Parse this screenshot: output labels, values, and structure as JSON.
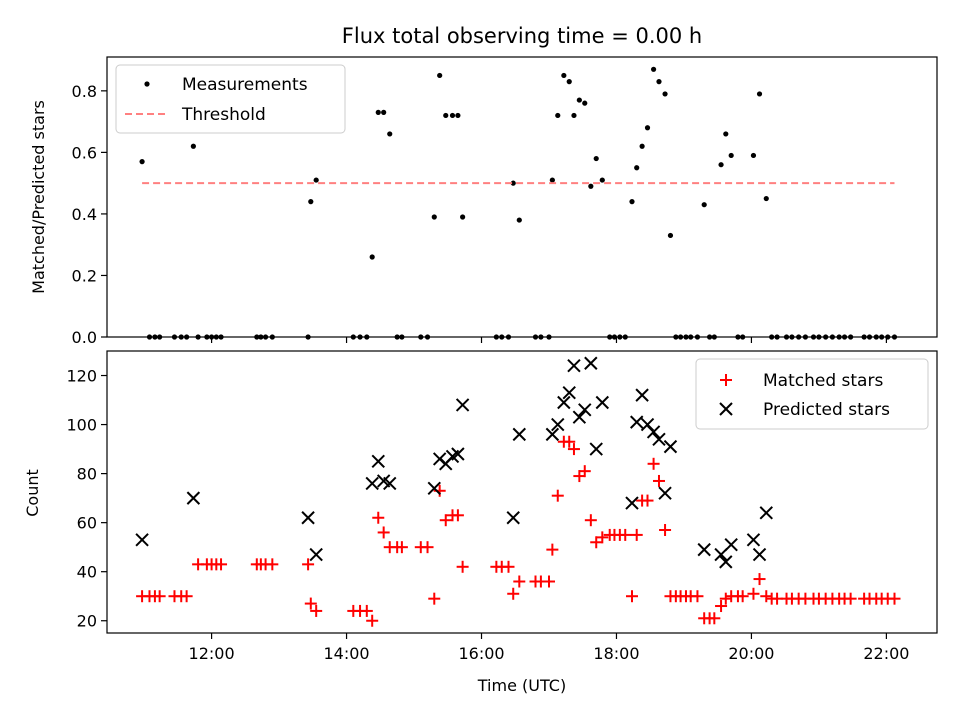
{
  "chart_data": [
    {
      "type": "scatter",
      "title": "Flux total observing time = 0.00 h",
      "xlabel": "",
      "ylabel": "Matched/Predicted stars",
      "xlim": [
        10.45,
        22.75
      ],
      "ylim": [
        0.0,
        0.91
      ],
      "yticks": [
        0.0,
        0.2,
        0.4,
        0.6,
        0.8
      ],
      "yticklabels": [
        "0.0",
        "0.2",
        "0.4",
        "0.6",
        "0.8"
      ],
      "legend_position": "upper-left",
      "series": [
        {
          "name": "Measurements",
          "marker": "dot",
          "color": "#000000",
          "points": [
            [
              10.97,
              0.57
            ],
            [
              11.08,
              0.0
            ],
            [
              11.16,
              0.0
            ],
            [
              11.23,
              0.0
            ],
            [
              11.45,
              0.0
            ],
            [
              11.55,
              0.0
            ],
            [
              11.63,
              0.0
            ],
            [
              11.73,
              0.62
            ],
            [
              11.8,
              0.0
            ],
            [
              11.93,
              0.0
            ],
            [
              12.0,
              0.0
            ],
            [
              12.07,
              0.0
            ],
            [
              12.14,
              0.0
            ],
            [
              12.67,
              0.0
            ],
            [
              12.73,
              0.0
            ],
            [
              12.8,
              0.0
            ],
            [
              12.9,
              0.0
            ],
            [
              13.43,
              0.0
            ],
            [
              13.47,
              0.44
            ],
            [
              13.55,
              0.51
            ],
            [
              14.1,
              0.0
            ],
            [
              14.2,
              0.0
            ],
            [
              14.3,
              0.0
            ],
            [
              14.38,
              0.26
            ],
            [
              14.47,
              0.73
            ],
            [
              14.55,
              0.73
            ],
            [
              14.64,
              0.66
            ],
            [
              14.75,
              0.0
            ],
            [
              14.82,
              0.0
            ],
            [
              15.1,
              0.0
            ],
            [
              15.2,
              0.0
            ],
            [
              15.3,
              0.39
            ],
            [
              15.38,
              0.85
            ],
            [
              15.47,
              0.72
            ],
            [
              15.57,
              0.72
            ],
            [
              15.65,
              0.72
            ],
            [
              15.72,
              0.39
            ],
            [
              16.22,
              0.0
            ],
            [
              16.3,
              0.0
            ],
            [
              16.4,
              0.0
            ],
            [
              16.47,
              0.5
            ],
            [
              16.56,
              0.38
            ],
            [
              16.8,
              0.0
            ],
            [
              16.88,
              0.0
            ],
            [
              17.0,
              0.0
            ],
            [
              17.05,
              0.51
            ],
            [
              17.13,
              0.72
            ],
            [
              17.22,
              0.85
            ],
            [
              17.3,
              0.83
            ],
            [
              17.37,
              0.72
            ],
            [
              17.45,
              0.77
            ],
            [
              17.53,
              0.76
            ],
            [
              17.62,
              0.49
            ],
            [
              17.7,
              0.58
            ],
            [
              17.79,
              0.51
            ],
            [
              17.9,
              0.0
            ],
            [
              17.97,
              0.0
            ],
            [
              18.05,
              0.0
            ],
            [
              18.13,
              0.0
            ],
            [
              18.23,
              0.44
            ],
            [
              18.3,
              0.55
            ],
            [
              18.38,
              0.62
            ],
            [
              18.46,
              0.68
            ],
            [
              18.55,
              0.87
            ],
            [
              18.63,
              0.83
            ],
            [
              18.72,
              0.79
            ],
            [
              18.8,
              0.33
            ],
            [
              18.88,
              0.0
            ],
            [
              18.95,
              0.0
            ],
            [
              19.03,
              0.0
            ],
            [
              19.1,
              0.0
            ],
            [
              19.2,
              0.0
            ],
            [
              19.3,
              0.43
            ],
            [
              19.38,
              0.0
            ],
            [
              19.45,
              0.0
            ],
            [
              19.55,
              0.56
            ],
            [
              19.62,
              0.66
            ],
            [
              19.7,
              0.59
            ],
            [
              19.8,
              0.0
            ],
            [
              19.87,
              0.0
            ],
            [
              20.03,
              0.59
            ],
            [
              20.12,
              0.79
            ],
            [
              20.22,
              0.45
            ],
            [
              20.3,
              0.0
            ],
            [
              20.38,
              0.0
            ],
            [
              20.52,
              0.0
            ],
            [
              20.6,
              0.0
            ],
            [
              20.7,
              0.0
            ],
            [
              20.8,
              0.0
            ],
            [
              20.92,
              0.0
            ],
            [
              21.0,
              0.0
            ],
            [
              21.1,
              0.0
            ],
            [
              21.2,
              0.0
            ],
            [
              21.3,
              0.0
            ],
            [
              21.38,
              0.0
            ],
            [
              21.47,
              0.0
            ],
            [
              21.67,
              0.0
            ],
            [
              21.75,
              0.0
            ],
            [
              21.85,
              0.0
            ],
            [
              21.93,
              0.0
            ],
            [
              22.02,
              0.0
            ],
            [
              22.12,
              0.0
            ]
          ]
        },
        {
          "name": "Threshold",
          "marker": "dashed-line",
          "color": "#ff8080",
          "points": [
            [
              10.97,
              0.5
            ],
            [
              22.12,
              0.5
            ]
          ]
        }
      ]
    },
    {
      "type": "scatter",
      "title": "",
      "xlabel": "Time (UTC)",
      "ylabel": "Count",
      "xlim": [
        10.45,
        22.75
      ],
      "ylim": [
        15,
        130
      ],
      "yticks": [
        20,
        40,
        60,
        80,
        100,
        120
      ],
      "yticklabels": [
        "20",
        "40",
        "60",
        "80",
        "100",
        "120"
      ],
      "xticks": [
        12,
        14,
        16,
        18,
        20,
        22
      ],
      "xticklabels": [
        "12:00",
        "14:00",
        "16:00",
        "18:00",
        "20:00",
        "22:00"
      ],
      "legend_position": "upper-right",
      "series": [
        {
          "name": "Matched stars",
          "marker": "plus",
          "color": "#ff0000",
          "points": [
            [
              10.97,
              30
            ],
            [
              11.08,
              30
            ],
            [
              11.16,
              30
            ],
            [
              11.23,
              30
            ],
            [
              11.45,
              30
            ],
            [
              11.55,
              30
            ],
            [
              11.63,
              30
            ],
            [
              11.8,
              43
            ],
            [
              11.93,
              43
            ],
            [
              12.0,
              43
            ],
            [
              12.07,
              43
            ],
            [
              12.14,
              43
            ],
            [
              12.67,
              43
            ],
            [
              12.73,
              43
            ],
            [
              12.8,
              43
            ],
            [
              12.9,
              43
            ],
            [
              13.43,
              43
            ],
            [
              13.47,
              27
            ],
            [
              13.55,
              24
            ],
            [
              14.1,
              24
            ],
            [
              14.2,
              24
            ],
            [
              14.3,
              24
            ],
            [
              14.38,
              20
            ],
            [
              14.47,
              62
            ],
            [
              14.55,
              56
            ],
            [
              14.64,
              50
            ],
            [
              14.75,
              50
            ],
            [
              14.82,
              50
            ],
            [
              15.1,
              50
            ],
            [
              15.2,
              50
            ],
            [
              15.3,
              29
            ],
            [
              15.38,
              73
            ],
            [
              15.47,
              61
            ],
            [
              15.57,
              63
            ],
            [
              15.65,
              63
            ],
            [
              15.72,
              42
            ],
            [
              16.22,
              42
            ],
            [
              16.3,
              42
            ],
            [
              16.4,
              42
            ],
            [
              16.47,
              31
            ],
            [
              16.56,
              36
            ],
            [
              16.8,
              36
            ],
            [
              16.88,
              36
            ],
            [
              17.0,
              36
            ],
            [
              17.05,
              49
            ],
            [
              17.13,
              71
            ],
            [
              17.22,
              93
            ],
            [
              17.3,
              93
            ],
            [
              17.37,
              90
            ],
            [
              17.45,
              79
            ],
            [
              17.53,
              81
            ],
            [
              17.62,
              61
            ],
            [
              17.7,
              52
            ],
            [
              17.79,
              54
            ],
            [
              17.9,
              55
            ],
            [
              17.97,
              55
            ],
            [
              18.05,
              55
            ],
            [
              18.13,
              55
            ],
            [
              18.23,
              30
            ],
            [
              18.3,
              55
            ],
            [
              18.38,
              69
            ],
            [
              18.46,
              69
            ],
            [
              18.55,
              84
            ],
            [
              18.63,
              77
            ],
            [
              18.72,
              57
            ],
            [
              18.8,
              30
            ],
            [
              18.88,
              30
            ],
            [
              18.95,
              30
            ],
            [
              19.03,
              30
            ],
            [
              19.1,
              30
            ],
            [
              19.2,
              30
            ],
            [
              19.3,
              21
            ],
            [
              19.38,
              21
            ],
            [
              19.45,
              21
            ],
            [
              19.55,
              26
            ],
            [
              19.62,
              29
            ],
            [
              19.7,
              30
            ],
            [
              19.8,
              30
            ],
            [
              19.87,
              30
            ],
            [
              20.03,
              31
            ],
            [
              20.12,
              37
            ],
            [
              20.22,
              30
            ],
            [
              20.3,
              29
            ],
            [
              20.38,
              29
            ],
            [
              20.52,
              29
            ],
            [
              20.6,
              29
            ],
            [
              20.7,
              29
            ],
            [
              20.8,
              29
            ],
            [
              20.92,
              29
            ],
            [
              21.0,
              29
            ],
            [
              21.1,
              29
            ],
            [
              21.2,
              29
            ],
            [
              21.3,
              29
            ],
            [
              21.38,
              29
            ],
            [
              21.47,
              29
            ],
            [
              21.67,
              29
            ],
            [
              21.75,
              29
            ],
            [
              21.85,
              29
            ],
            [
              21.93,
              29
            ],
            [
              22.02,
              29
            ],
            [
              22.12,
              29
            ]
          ]
        },
        {
          "name": "Predicted stars",
          "marker": "x",
          "color": "#000000",
          "points": [
            [
              10.97,
              53
            ],
            [
              11.73,
              70
            ],
            [
              13.43,
              62
            ],
            [
              13.55,
              47
            ],
            [
              14.38,
              76
            ],
            [
              14.47,
              85
            ],
            [
              14.55,
              77
            ],
            [
              14.64,
              76
            ],
            [
              15.3,
              74
            ],
            [
              15.38,
              86
            ],
            [
              15.47,
              84
            ],
            [
              15.57,
              87
            ],
            [
              15.65,
              88
            ],
            [
              15.72,
              108
            ],
            [
              16.47,
              62
            ],
            [
              16.56,
              96
            ],
            [
              17.05,
              96
            ],
            [
              17.13,
              100
            ],
            [
              17.22,
              109
            ],
            [
              17.3,
              113
            ],
            [
              17.37,
              124
            ],
            [
              17.45,
              103
            ],
            [
              17.53,
              106
            ],
            [
              17.62,
              125
            ],
            [
              17.7,
              90
            ],
            [
              17.79,
              109
            ],
            [
              18.23,
              68
            ],
            [
              18.3,
              101
            ],
            [
              18.38,
              112
            ],
            [
              18.46,
              100
            ],
            [
              18.55,
              97
            ],
            [
              18.63,
              94
            ],
            [
              18.72,
              72
            ],
            [
              18.8,
              91
            ],
            [
              19.3,
              49
            ],
            [
              19.55,
              47
            ],
            [
              19.62,
              44
            ],
            [
              19.7,
              51
            ],
            [
              20.03,
              53
            ],
            [
              20.12,
              47
            ],
            [
              20.22,
              64
            ]
          ]
        }
      ]
    }
  ]
}
